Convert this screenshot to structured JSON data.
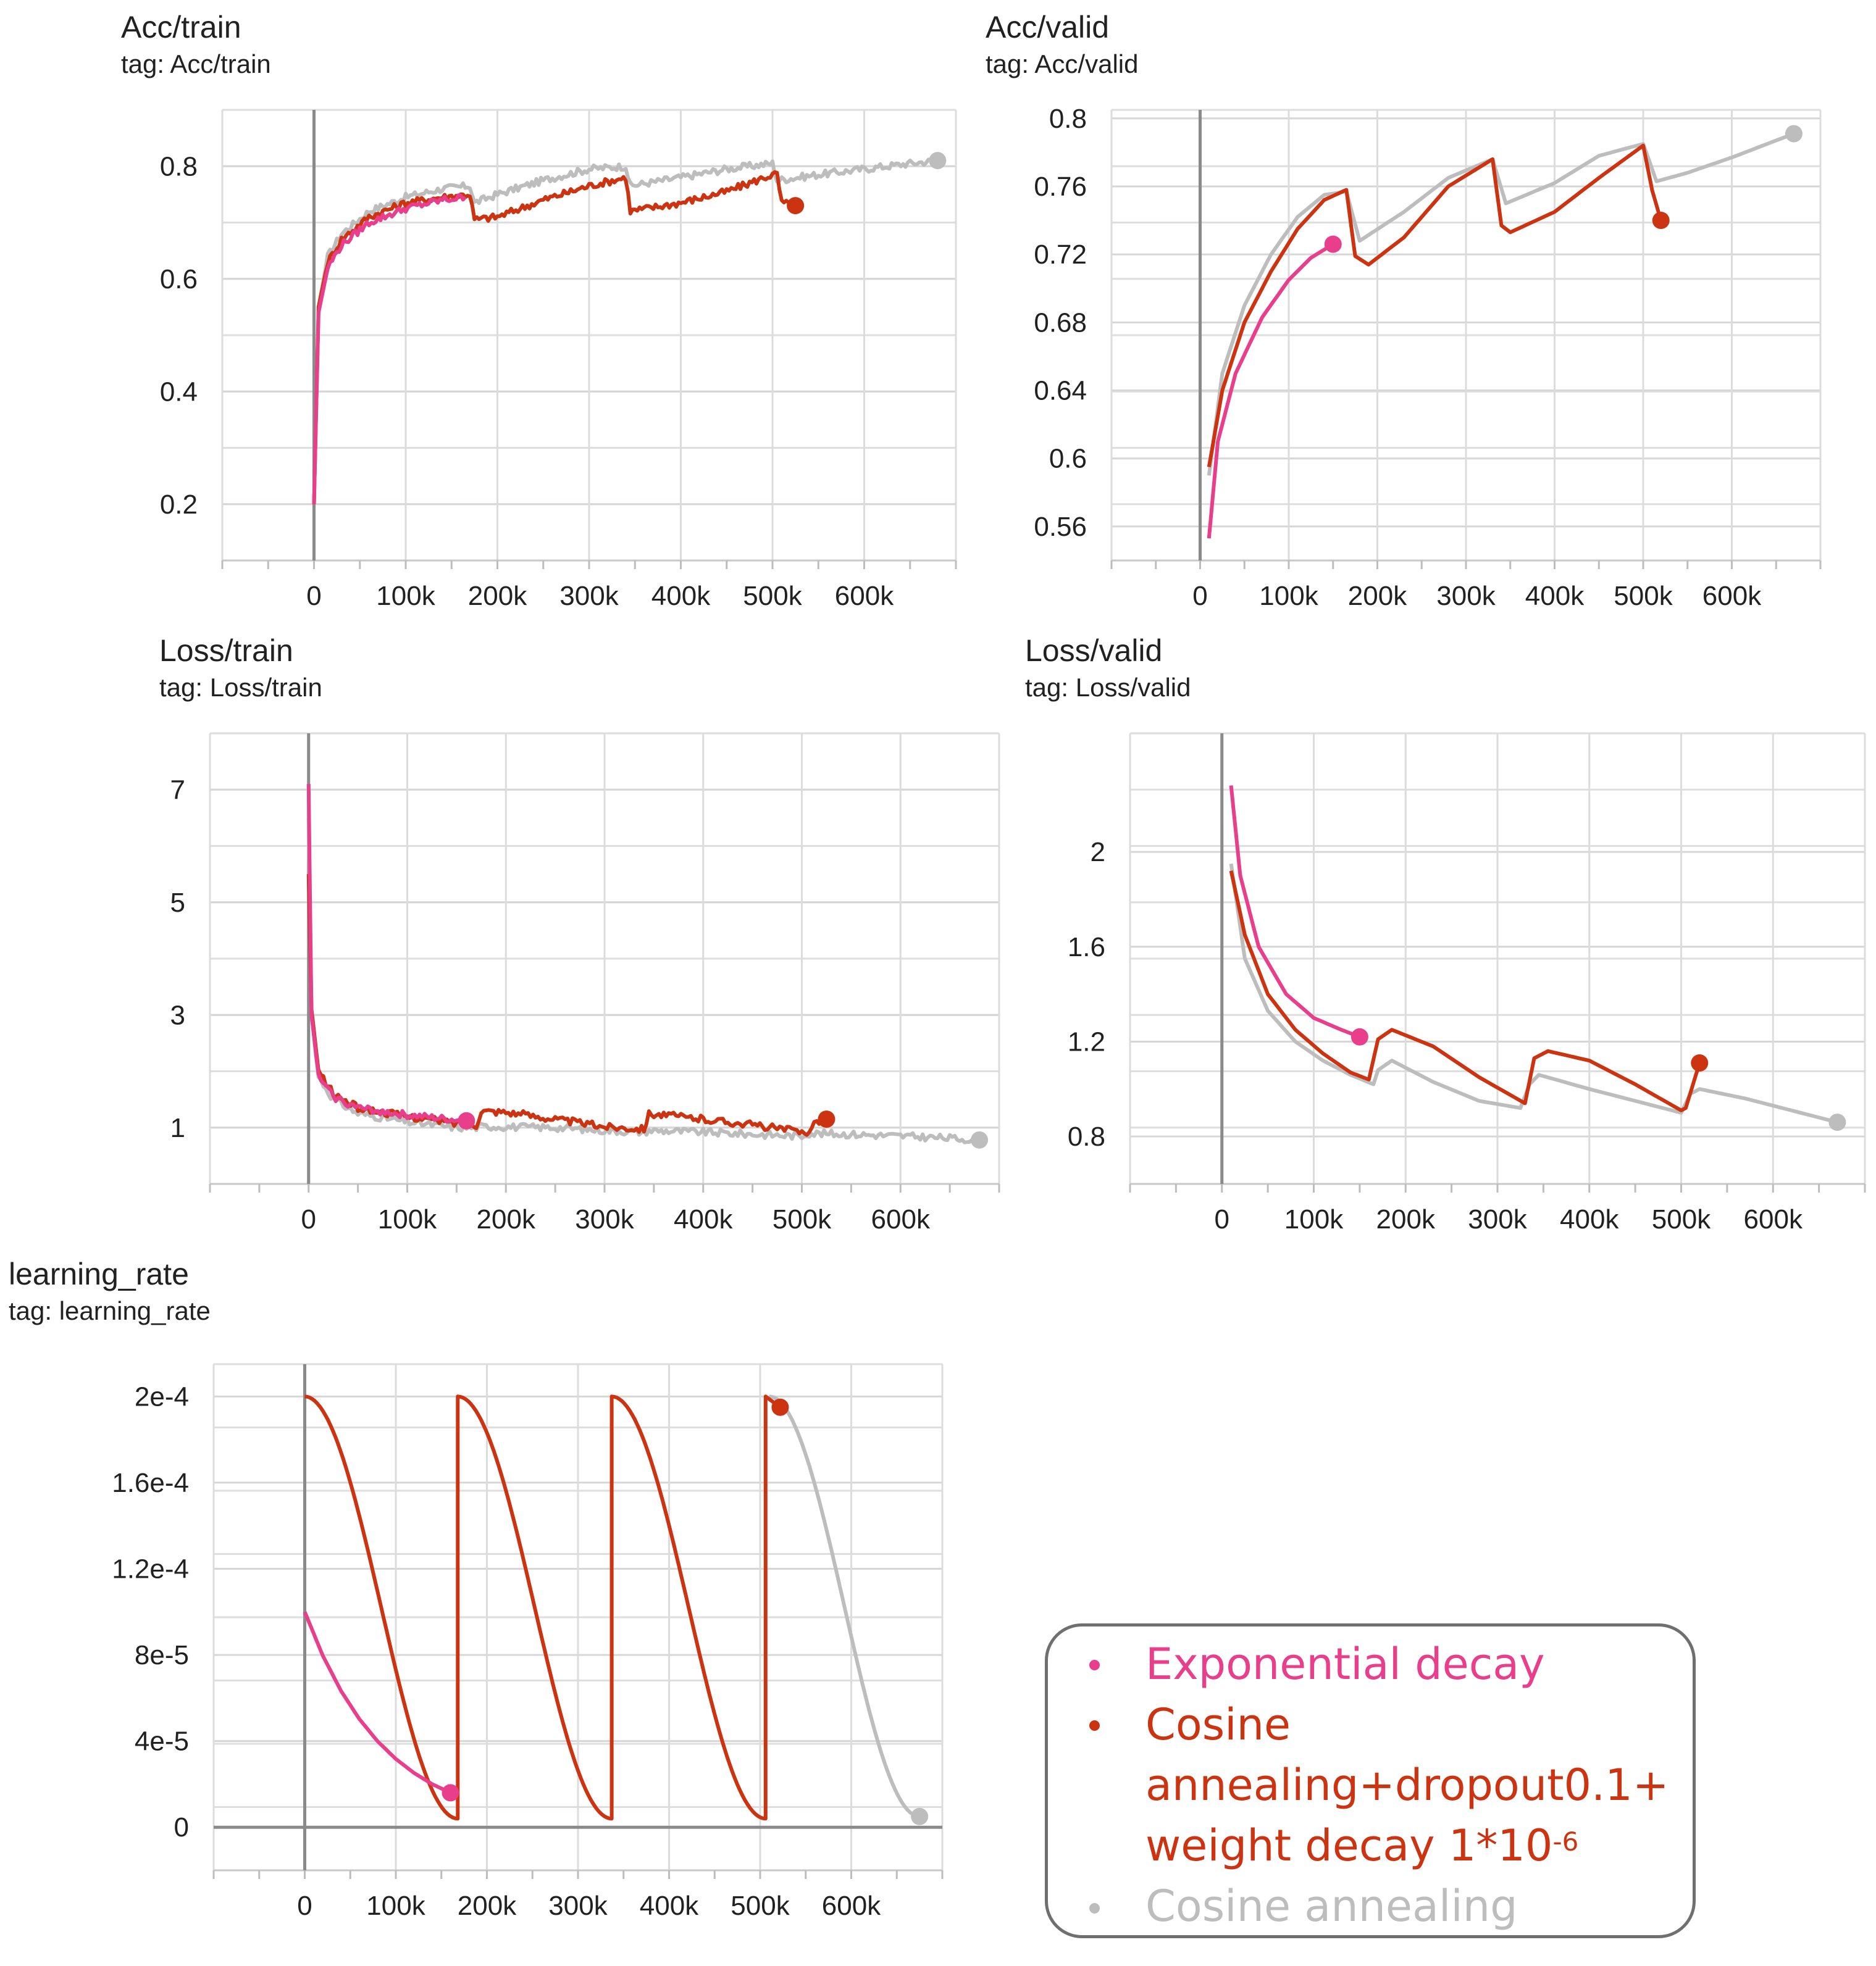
{
  "colors": {
    "exponential": "#E83E8C",
    "cosine_dropout": "#CC3311",
    "cosine": "#BDBDBD"
  },
  "legend": [
    {
      "key": "exponential",
      "lines": [
        "Exponential decay"
      ]
    },
    {
      "key": "cosine_dropout",
      "lines": [
        "Cosine",
        "annealing+dropout0.1+",
        "weight decay 1*10"
      ],
      "superscript": "-6"
    },
    {
      "key": "cosine",
      "lines": [
        "Cosine annealing"
      ]
    }
  ],
  "chart_data": [
    {
      "id": "acc_train",
      "type": "line",
      "title": "Acc/train",
      "tag": "tag: Acc/train",
      "xlim": [
        -100000,
        700000
      ],
      "ylim": [
        0.1,
        0.9
      ],
      "x_ticks": [
        0,
        100000,
        200000,
        300000,
        400000,
        500000,
        600000
      ],
      "x_tick_labels": [
        "0",
        "100k",
        "200k",
        "300k",
        "400k",
        "500k",
        "600k"
      ],
      "y_ticks": [
        0.2,
        0.4,
        0.6,
        0.8
      ],
      "y_tick_labels": [
        "0.2",
        "0.4",
        "0.6",
        "0.8"
      ],
      "grid": true,
      "series": [
        {
          "key": "cosine",
          "noisy": true,
          "end_marker": true,
          "x": [
            0,
            5000,
            15000,
            30000,
            60000,
            100000,
            140000,
            170000,
            175000,
            200000,
            250000,
            300000,
            340000,
            345000,
            400000,
            450000,
            500000,
            505000,
            550000,
            600000,
            650000,
            680000
          ],
          "y": [
            0.2,
            0.55,
            0.64,
            0.68,
            0.72,
            0.745,
            0.76,
            0.765,
            0.735,
            0.75,
            0.775,
            0.795,
            0.8,
            0.765,
            0.78,
            0.795,
            0.805,
            0.775,
            0.785,
            0.795,
            0.805,
            0.81
          ]
        },
        {
          "key": "cosine_dropout",
          "noisy": true,
          "end_marker": true,
          "x": [
            0,
            5000,
            15000,
            30000,
            60000,
            100000,
            140000,
            170000,
            175000,
            200000,
            250000,
            300000,
            340000,
            345000,
            400000,
            450000,
            500000,
            505000,
            510000,
            525000
          ],
          "y": [
            0.2,
            0.55,
            0.63,
            0.67,
            0.71,
            0.735,
            0.745,
            0.75,
            0.705,
            0.71,
            0.74,
            0.765,
            0.78,
            0.72,
            0.735,
            0.755,
            0.785,
            0.785,
            0.735,
            0.73
          ]
        },
        {
          "key": "exponential",
          "noisy": true,
          "end_marker": false,
          "x": [
            0,
            5000,
            15000,
            30000,
            60000,
            100000,
            140000,
            165000
          ],
          "y": [
            0.2,
            0.54,
            0.62,
            0.66,
            0.7,
            0.725,
            0.74,
            0.745
          ]
        }
      ]
    },
    {
      "id": "acc_valid",
      "type": "line",
      "title": "Acc/valid",
      "tag": "tag: Acc/valid",
      "xlim": [
        -100000,
        700000
      ],
      "ylim": [
        0.54,
        0.805
      ],
      "x_ticks": [
        0,
        100000,
        200000,
        300000,
        400000,
        500000,
        600000
      ],
      "x_tick_labels": [
        "0",
        "100k",
        "200k",
        "300k",
        "400k",
        "500k",
        "600k"
      ],
      "y_ticks": [
        0.56,
        0.6,
        0.64,
        0.68,
        0.72,
        0.76,
        0.8
      ],
      "y_tick_labels": [
        "0.56",
        "0.6",
        "0.64",
        "0.68",
        "0.72",
        "0.76",
        "0.8"
      ],
      "grid": true,
      "series": [
        {
          "key": "cosine",
          "noisy": false,
          "end_marker": true,
          "x": [
            10000,
            25000,
            50000,
            80000,
            110000,
            140000,
            165000,
            180000,
            230000,
            280000,
            330000,
            345000,
            400000,
            450000,
            500000,
            515000,
            550000,
            600000,
            670000
          ],
          "y": [
            0.59,
            0.65,
            0.69,
            0.72,
            0.742,
            0.755,
            0.757,
            0.728,
            0.745,
            0.765,
            0.776,
            0.75,
            0.762,
            0.778,
            0.785,
            0.763,
            0.768,
            0.777,
            0.791
          ]
        },
        {
          "key": "cosine_dropout",
          "noisy": false,
          "end_marker": true,
          "x": [
            10000,
            25000,
            50000,
            80000,
            110000,
            140000,
            165000,
            175000,
            190000,
            230000,
            280000,
            330000,
            340000,
            350000,
            400000,
            450000,
            500000,
            510000,
            520000
          ],
          "y": [
            0.595,
            0.64,
            0.68,
            0.71,
            0.735,
            0.752,
            0.758,
            0.719,
            0.714,
            0.73,
            0.76,
            0.776,
            0.737,
            0.733,
            0.745,
            0.765,
            0.784,
            0.758,
            0.74
          ]
        },
        {
          "key": "exponential",
          "noisy": false,
          "end_marker": true,
          "x": [
            10000,
            20000,
            40000,
            70000,
            100000,
            125000,
            150000
          ],
          "y": [
            0.553,
            0.61,
            0.65,
            0.683,
            0.705,
            0.718,
            0.726
          ]
        }
      ]
    },
    {
      "id": "loss_train",
      "type": "line",
      "title": "Loss/train",
      "tag": "tag: Loss/train",
      "xlim": [
        -100000,
        700000
      ],
      "ylim": [
        0,
        8
      ],
      "x_ticks": [
        0,
        100000,
        200000,
        300000,
        400000,
        500000,
        600000
      ],
      "x_tick_labels": [
        "0",
        "100k",
        "200k",
        "300k",
        "400k",
        "500k",
        "600k"
      ],
      "y_ticks": [
        1,
        3,
        5,
        7
      ],
      "y_tick_labels": [
        "1",
        "3",
        "5",
        "7"
      ],
      "grid": true,
      "series": [
        {
          "key": "cosine",
          "noisy": true,
          "end_marker": true,
          "x": [
            0,
            3000,
            10000,
            25000,
            50000,
            100000,
            150000,
            170000,
            175000,
            250000,
            300000,
            340000,
            345000,
            400000,
            450000,
            500000,
            505000,
            550000,
            600000,
            640000,
            680000
          ],
          "y": [
            6.5,
            3.0,
            1.9,
            1.5,
            1.25,
            1.1,
            1.0,
            1.0,
            1.02,
            1.0,
            0.95,
            0.92,
            0.95,
            0.92,
            0.88,
            0.85,
            0.9,
            0.88,
            0.85,
            0.82,
            0.78
          ]
        },
        {
          "key": "cosine_dropout",
          "noisy": true,
          "end_marker": true,
          "x": [
            0,
            3000,
            10000,
            25000,
            50000,
            100000,
            150000,
            170000,
            175000,
            200000,
            250000,
            300000,
            340000,
            345000,
            400000,
            450000,
            500000,
            505000,
            515000,
            525000
          ],
          "y": [
            5.5,
            3.1,
            2.0,
            1.6,
            1.35,
            1.2,
            1.08,
            1.05,
            1.3,
            1.28,
            1.15,
            1.02,
            0.98,
            1.25,
            1.15,
            1.05,
            0.92,
            0.92,
            1.12,
            1.15
          ]
        },
        {
          "key": "exponential",
          "noisy": true,
          "end_marker": true,
          "x": [
            0,
            3000,
            10000,
            25000,
            50000,
            100000,
            140000,
            160000
          ],
          "y": [
            7.1,
            3.0,
            1.9,
            1.55,
            1.35,
            1.22,
            1.15,
            1.12
          ]
        }
      ]
    },
    {
      "id": "loss_valid",
      "type": "line",
      "title": "Loss/valid",
      "tag": "tag: Loss/valid",
      "xlim": [
        -100000,
        700000
      ],
      "ylim": [
        0.6,
        2.5
      ],
      "x_ticks": [
        0,
        100000,
        200000,
        300000,
        400000,
        500000,
        600000
      ],
      "x_tick_labels": [
        "0",
        "100k",
        "200k",
        "300k",
        "400k",
        "500k",
        "600k"
      ],
      "y_ticks": [
        0.8,
        1.2,
        1.6,
        2.0
      ],
      "y_tick_labels": [
        "0.8",
        "1.2",
        "1.6",
        "2"
      ],
      "grid": true,
      "series": [
        {
          "key": "cosine",
          "noisy": false,
          "end_marker": true,
          "x": [
            10000,
            25000,
            50000,
            80000,
            110000,
            140000,
            165000,
            170000,
            185000,
            230000,
            280000,
            325000,
            335000,
            345000,
            400000,
            450000,
            500000,
            510000,
            520000,
            570000,
            620000,
            670000
          ],
          "y": [
            1.95,
            1.55,
            1.33,
            1.2,
            1.12,
            1.06,
            1.02,
            1.08,
            1.12,
            1.03,
            0.95,
            0.92,
            1.02,
            1.06,
            1.0,
            0.95,
            0.9,
            0.98,
            1.0,
            0.96,
            0.91,
            0.86
          ]
        },
        {
          "key": "cosine_dropout",
          "noisy": false,
          "end_marker": true,
          "x": [
            10000,
            25000,
            50000,
            80000,
            110000,
            140000,
            160000,
            170000,
            185000,
            230000,
            280000,
            330000,
            340000,
            355000,
            400000,
            450000,
            500000,
            505000,
            520000
          ],
          "y": [
            1.92,
            1.65,
            1.4,
            1.25,
            1.15,
            1.07,
            1.04,
            1.21,
            1.25,
            1.18,
            1.05,
            0.94,
            1.13,
            1.16,
            1.12,
            1.02,
            0.91,
            0.92,
            1.11
          ]
        },
        {
          "key": "exponential",
          "noisy": false,
          "end_marker": true,
          "x": [
            10000,
            20000,
            40000,
            70000,
            100000,
            130000,
            150000
          ],
          "y": [
            2.28,
            1.9,
            1.6,
            1.4,
            1.3,
            1.25,
            1.22
          ]
        }
      ]
    },
    {
      "id": "learning_rate",
      "type": "line",
      "title": "learning_rate",
      "tag": "tag: learning_rate",
      "xlim": [
        -100000,
        700000
      ],
      "ylim": [
        -2e-05,
        0.000215
      ],
      "x_ticks": [
        0,
        100000,
        200000,
        300000,
        400000,
        500000,
        600000
      ],
      "x_tick_labels": [
        "0",
        "100k",
        "200k",
        "300k",
        "400k",
        "500k",
        "600k"
      ],
      "y_ticks": [
        0,
        4e-05,
        8e-05,
        0.00012,
        0.00016,
        0.0002
      ],
      "y_tick_labels": [
        "0",
        "4e-5",
        "8e-5",
        "1.2e-4",
        "1.6e-4",
        "2e-4"
      ],
      "grid": true,
      "series": [
        {
          "key": "cosine",
          "noisy": false,
          "end_marker": true,
          "cosine_cycles": [
            [
              510000,
              675000,
              0.0002,
              5e-06
            ]
          ]
        },
        {
          "key": "cosine_dropout",
          "noisy": false,
          "end_marker": true,
          "cosine_cycles": [
            [
              0,
              168000,
              0.0002,
              4e-06
            ],
            [
              168000,
              337000,
              0.0002,
              4e-06
            ],
            [
              337000,
              506000,
              0.0002,
              4e-06
            ],
            [
              506000,
              522000,
              0.0002,
              0.000195
            ]
          ]
        },
        {
          "key": "exponential",
          "noisy": false,
          "end_marker": true,
          "x": [
            0,
            20000,
            40000,
            60000,
            80000,
            100000,
            120000,
            140000,
            160000
          ],
          "y": [
            0.0001,
            7.95e-05,
            6.32e-05,
            5.02e-05,
            3.99e-05,
            3.17e-05,
            2.52e-05,
            2e-05,
            1.6e-05
          ]
        }
      ]
    }
  ]
}
